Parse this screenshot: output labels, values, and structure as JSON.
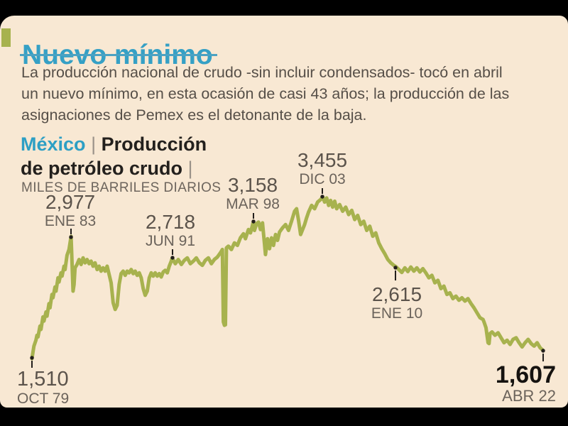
{
  "header": {
    "title": "Nuevo mínimo"
  },
  "intro": {
    "lines": [
      "La producción nacional de crudo -sin incluir condensados- tocó en abril",
      "un nuevo mínimo, en esta ocasión de casi 43 años; la producción de las",
      "asignaciones de Pemex es el detonante de la baja."
    ]
  },
  "kicker": {
    "region": "México",
    "pipe": "|",
    "series_line1": "Producción",
    "series_line2": "de petróleo crudo",
    "pipe2": "|"
  },
  "units_label": "MILES DE BARRILES DIARIOS",
  "colors": {
    "background_cream": "#f8e8d3",
    "frame_black": "#000000",
    "title_teal": "#35a0c5",
    "line_olive": "#a7b24e",
    "marker_black": "#231f1c"
  },
  "chart_data": {
    "type": "line",
    "title": "México | Producción de petróleo crudo",
    "ylabel": "MILES DE BARRILES DIARIOS",
    "xlabel": "",
    "x_axis": {
      "start": "OCT 1979",
      "end": "ABR 2022",
      "encoding": "months since OCT 1979"
    },
    "ylim": [
      1400,
      3600
    ],
    "grid": false,
    "legend": "none",
    "key_points": [
      {
        "label": "1,510",
        "value": 1510,
        "date": "OCT 79",
        "month_index": 0
      },
      {
        "label": "2,977",
        "value": 2977,
        "date": "ENE 83",
        "month_index": 39
      },
      {
        "label": "2,718",
        "value": 2718,
        "date": "JUN 91",
        "month_index": 140
      },
      {
        "label": "3,158",
        "value": 3158,
        "date": "MAR 98",
        "month_index": 221
      },
      {
        "label": "3,455",
        "value": 3455,
        "date": "DIC 03",
        "month_index": 290
      },
      {
        "label": "2,615",
        "value": 2615,
        "date": "ENE 10",
        "month_index": 363
      },
      {
        "label": "1,607",
        "value": 1607,
        "date": "ABR 22",
        "month_index": 510
      }
    ],
    "series": [
      {
        "name": "Producción de petróleo crudo (miles de barriles diarios)",
        "points": [
          [
            0,
            1510
          ],
          [
            2,
            1660
          ],
          [
            4,
            1730
          ],
          [
            5,
            1790
          ],
          [
            6,
            1770
          ],
          [
            8,
            1900
          ],
          [
            9,
            1860
          ],
          [
            11,
            2010
          ],
          [
            12,
            1960
          ],
          [
            14,
            2070
          ],
          [
            15,
            2020
          ],
          [
            17,
            2170
          ],
          [
            18,
            2120
          ],
          [
            20,
            2280
          ],
          [
            21,
            2240
          ],
          [
            23,
            2370
          ],
          [
            24,
            2320
          ],
          [
            26,
            2480
          ],
          [
            27,
            2430
          ],
          [
            29,
            2540
          ],
          [
            30,
            2500
          ],
          [
            32,
            2620
          ],
          [
            33,
            2580
          ],
          [
            35,
            2750
          ],
          [
            37,
            2820
          ],
          [
            39,
            2977
          ],
          [
            40,
            2650
          ],
          [
            41,
            2320
          ],
          [
            42,
            2400
          ],
          [
            43,
            2600
          ],
          [
            45,
            2640
          ],
          [
            47,
            2700
          ],
          [
            49,
            2640
          ],
          [
            51,
            2720
          ],
          [
            53,
            2660
          ],
          [
            55,
            2700
          ],
          [
            57,
            2650
          ],
          [
            59,
            2680
          ],
          [
            61,
            2620
          ],
          [
            63,
            2660
          ],
          [
            65,
            2580
          ],
          [
            67,
            2620
          ],
          [
            69,
            2560
          ],
          [
            71,
            2600
          ],
          [
            73,
            2560
          ],
          [
            75,
            2620
          ],
          [
            77,
            2520
          ],
          [
            79,
            2420
          ],
          [
            81,
            2180
          ],
          [
            83,
            2100
          ],
          [
            85,
            2150
          ],
          [
            87,
            2400
          ],
          [
            89,
            2530
          ],
          [
            91,
            2560
          ],
          [
            93,
            2510
          ],
          [
            95,
            2560
          ],
          [
            97,
            2540
          ],
          [
            99,
            2580
          ],
          [
            101,
            2530
          ],
          [
            103,
            2560
          ],
          [
            105,
            2510
          ],
          [
            107,
            2540
          ],
          [
            109,
            2480
          ],
          [
            111,
            2350
          ],
          [
            113,
            2270
          ],
          [
            115,
            2320
          ],
          [
            117,
            2480
          ],
          [
            119,
            2540
          ],
          [
            121,
            2500
          ],
          [
            123,
            2540
          ],
          [
            125,
            2500
          ],
          [
            127,
            2530
          ],
          [
            129,
            2490
          ],
          [
            131,
            2550
          ],
          [
            133,
            2570
          ],
          [
            135,
            2540
          ],
          [
            137,
            2620
          ],
          [
            139,
            2680
          ],
          [
            140,
            2718
          ],
          [
            143,
            2650
          ],
          [
            146,
            2700
          ],
          [
            149,
            2640
          ],
          [
            152,
            2690
          ],
          [
            155,
            2720
          ],
          [
            158,
            2650
          ],
          [
            161,
            2680
          ],
          [
            164,
            2720
          ],
          [
            167,
            2660
          ],
          [
            170,
            2630
          ],
          [
            173,
            2690
          ],
          [
            176,
            2720
          ],
          [
            179,
            2650
          ],
          [
            182,
            2700
          ],
          [
            185,
            2730
          ],
          [
            188,
            2780
          ],
          [
            190,
            2820
          ],
          [
            191,
            1950
          ],
          [
            192,
            1910
          ],
          [
            193,
            1915
          ],
          [
            194,
            2840
          ],
          [
            196,
            2860
          ],
          [
            199,
            2820
          ],
          [
            202,
            2900
          ],
          [
            205,
            2870
          ],
          [
            208,
            2960
          ],
          [
            211,
            3010
          ],
          [
            213,
            2950
          ],
          [
            216,
            3060
          ],
          [
            218,
            3020
          ],
          [
            221,
            3158
          ],
          [
            222,
            3050
          ],
          [
            224,
            3130
          ],
          [
            226,
            3150
          ],
          [
            228,
            3060
          ],
          [
            230,
            3140
          ],
          [
            232,
            2890
          ],
          [
            233,
            2760
          ],
          [
            235,
            2950
          ],
          [
            237,
            2830
          ],
          [
            239,
            2960
          ],
          [
            241,
            2870
          ],
          [
            243,
            3000
          ],
          [
            245,
            2930
          ],
          [
            247,
            3030
          ],
          [
            250,
            3080
          ],
          [
            253,
            3120
          ],
          [
            256,
            3050
          ],
          [
            259,
            3160
          ],
          [
            262,
            3280
          ],
          [
            264,
            3310
          ],
          [
            266,
            3170
          ],
          [
            268,
            3000
          ],
          [
            270,
            3060
          ],
          [
            272,
            3120
          ],
          [
            274,
            3200
          ],
          [
            276,
            3270
          ],
          [
            279,
            3350
          ],
          [
            282,
            3310
          ],
          [
            285,
            3390
          ],
          [
            288,
            3420
          ],
          [
            290,
            3455
          ],
          [
            292,
            3390
          ],
          [
            294,
            3440
          ],
          [
            296,
            3350
          ],
          [
            298,
            3410
          ],
          [
            300,
            3330
          ],
          [
            302,
            3400
          ],
          [
            304,
            3310
          ],
          [
            307,
            3360
          ],
          [
            310,
            3280
          ],
          [
            313,
            3330
          ],
          [
            316,
            3240
          ],
          [
            319,
            3290
          ],
          [
            322,
            3180
          ],
          [
            325,
            3230
          ],
          [
            328,
            3120
          ],
          [
            331,
            3160
          ],
          [
            334,
            3050
          ],
          [
            337,
            3100
          ],
          [
            340,
            2980
          ],
          [
            343,
            3020
          ],
          [
            346,
            2900
          ],
          [
            349,
            2830
          ],
          [
            352,
            2770
          ],
          [
            355,
            2700
          ],
          [
            358,
            2660
          ],
          [
            361,
            2630
          ],
          [
            363,
            2615
          ],
          [
            366,
            2580
          ],
          [
            369,
            2545
          ],
          [
            372,
            2600
          ],
          [
            375,
            2555
          ],
          [
            378,
            2610
          ],
          [
            381,
            2560
          ],
          [
            384,
            2600
          ],
          [
            387,
            2550
          ],
          [
            390,
            2590
          ],
          [
            393,
            2540
          ],
          [
            396,
            2480
          ],
          [
            399,
            2510
          ],
          [
            402,
            2420
          ],
          [
            405,
            2450
          ],
          [
            408,
            2350
          ],
          [
            411,
            2380
          ],
          [
            414,
            2280
          ],
          [
            417,
            2300
          ],
          [
            420,
            2230
          ],
          [
            423,
            2260
          ],
          [
            426,
            2210
          ],
          [
            429,
            2240
          ],
          [
            432,
            2200
          ],
          [
            435,
            2230
          ],
          [
            438,
            2170
          ],
          [
            441,
            2120
          ],
          [
            444,
            2060
          ],
          [
            447,
            2000
          ],
          [
            450,
            1980
          ],
          [
            451,
            1950
          ],
          [
            453,
            1880
          ],
          [
            455,
            1700
          ],
          [
            456,
            1690
          ],
          [
            457,
            1810
          ],
          [
            459,
            1830
          ],
          [
            462,
            1790
          ],
          [
            465,
            1820
          ],
          [
            468,
            1760
          ],
          [
            471,
            1700
          ],
          [
            474,
            1730
          ],
          [
            477,
            1680
          ],
          [
            480,
            1740
          ],
          [
            483,
            1760
          ],
          [
            486,
            1700
          ],
          [
            489,
            1650
          ],
          [
            492,
            1700
          ],
          [
            495,
            1740
          ],
          [
            498,
            1690
          ],
          [
            501,
            1660
          ],
          [
            504,
            1700
          ],
          [
            507,
            1640
          ],
          [
            510,
            1607
          ]
        ]
      }
    ]
  }
}
